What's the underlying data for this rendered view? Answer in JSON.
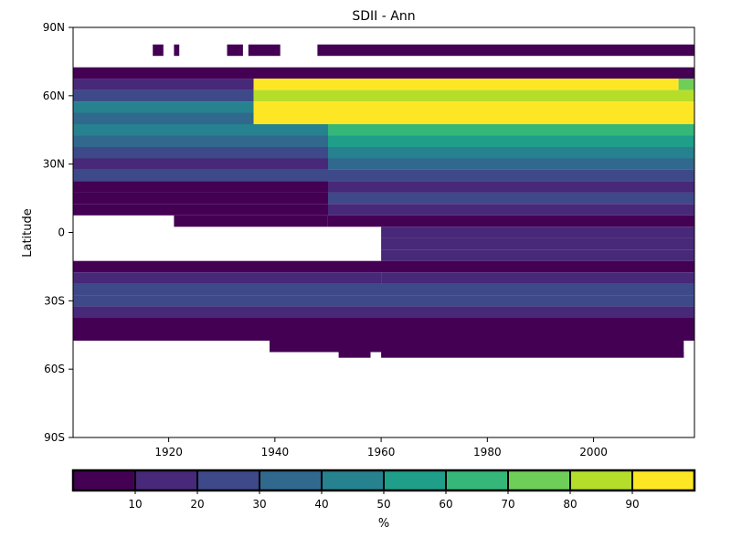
{
  "chart_data": {
    "type": "heatmap",
    "title": "SDII - Ann",
    "xlabel": "",
    "ylabel": "Latitude",
    "xlim": [
      1902,
      2019
    ],
    "ylim": [
      -90,
      90
    ],
    "x_ticks": [
      1920,
      1940,
      1960,
      1980,
      2000
    ],
    "x_tick_labels": [
      "1920",
      "1940",
      "1960",
      "1980",
      "2000"
    ],
    "y_ticks": [
      90,
      60,
      30,
      0,
      -30,
      -60,
      -90
    ],
    "y_tick_labels": [
      "90N",
      "60N",
      "30N",
      "0",
      "30S",
      "60S",
      "90S"
    ],
    "colorbar": {
      "label": "%",
      "boundaries": [
        0,
        10,
        20,
        30,
        40,
        50,
        60,
        70,
        80,
        90,
        100
      ],
      "tick_values": [
        10,
        20,
        30,
        40,
        50,
        60,
        70,
        80,
        90
      ],
      "tick_labels": [
        "10",
        "20",
        "30",
        "40",
        "50",
        "60",
        "70",
        "80",
        "90"
      ],
      "colors": [
        "#440154",
        "#482878",
        "#3e4989",
        "#31688e",
        "#26828e",
        "#1f9e89",
        "#35b779",
        "#6ece58",
        "#b5de2b",
        "#fde725"
      ]
    },
    "bands_note_values_are_percent_bins": true,
    "regions": [
      {
        "x": [
          1917,
          1919
        ],
        "lat": [
          77.5,
          82.5
        ],
        "bin": 0
      },
      {
        "x": [
          1921,
          1922
        ],
        "lat": [
          77.5,
          82.5
        ],
        "bin": 0
      },
      {
        "x": [
          1931,
          1934
        ],
        "lat": [
          77.5,
          82.5
        ],
        "bin": 0
      },
      {
        "x": [
          1935,
          1941
        ],
        "lat": [
          77.5,
          82.5
        ],
        "bin": 0
      },
      {
        "x": [
          1948,
          2019
        ],
        "lat": [
          77.5,
          82.5
        ],
        "bin": 0
      },
      {
        "x": [
          1902,
          2019
        ],
        "lat": [
          67.5,
          72.5
        ],
        "bin": 0
      },
      {
        "x": [
          1902,
          1936
        ],
        "lat": [
          62.5,
          67.5
        ],
        "bin": 1
      },
      {
        "x": [
          1936,
          2016
        ],
        "lat": [
          62.5,
          67.5
        ],
        "bin": 9
      },
      {
        "x": [
          2016,
          2019
        ],
        "lat": [
          62.5,
          67.5
        ],
        "bin": 7
      },
      {
        "x": [
          1902,
          1936
        ],
        "lat": [
          57.5,
          62.5
        ],
        "bin": 2
      },
      {
        "x": [
          1936,
          2019
        ],
        "lat": [
          57.5,
          62.5
        ],
        "bin": 8
      },
      {
        "x": [
          1902,
          1936
        ],
        "lat": [
          52.5,
          57.5
        ],
        "bin": 4
      },
      {
        "x": [
          1936,
          2019
        ],
        "lat": [
          52.5,
          57.5
        ],
        "bin": 9
      },
      {
        "x": [
          1902,
          1936
        ],
        "lat": [
          47.5,
          52.5
        ],
        "bin": 3
      },
      {
        "x": [
          1936,
          2019
        ],
        "lat": [
          47.5,
          52.5
        ],
        "bin": 9
      },
      {
        "x": [
          1902,
          1950
        ],
        "lat": [
          42.5,
          47.5
        ],
        "bin": 4
      },
      {
        "x": [
          1950,
          2019
        ],
        "lat": [
          42.5,
          47.5
        ],
        "bin": 6
      },
      {
        "x": [
          1902,
          1950
        ],
        "lat": [
          37.5,
          42.5
        ],
        "bin": 3
      },
      {
        "x": [
          1950,
          2019
        ],
        "lat": [
          37.5,
          42.5
        ],
        "bin": 5
      },
      {
        "x": [
          1902,
          1950
        ],
        "lat": [
          32.5,
          37.5
        ],
        "bin": 2
      },
      {
        "x": [
          1950,
          2019
        ],
        "lat": [
          32.5,
          37.5
        ],
        "bin": 4
      },
      {
        "x": [
          1902,
          1950
        ],
        "lat": [
          27.5,
          32.5
        ],
        "bin": 1
      },
      {
        "x": [
          1950,
          2019
        ],
        "lat": [
          27.5,
          32.5
        ],
        "bin": 3
      },
      {
        "x": [
          1902,
          1950
        ],
        "lat": [
          22.5,
          27.5
        ],
        "bin": 2
      },
      {
        "x": [
          1950,
          2019
        ],
        "lat": [
          22.5,
          27.5
        ],
        "bin": 2
      },
      {
        "x": [
          1902,
          1950
        ],
        "lat": [
          17.5,
          22.5
        ],
        "bin": 0
      },
      {
        "x": [
          1950,
          2019
        ],
        "lat": [
          17.5,
          22.5
        ],
        "bin": 1
      },
      {
        "x": [
          1902,
          1950
        ],
        "lat": [
          12.5,
          17.5
        ],
        "bin": 0
      },
      {
        "x": [
          1950,
          2019
        ],
        "lat": [
          12.5,
          17.5
        ],
        "bin": 2
      },
      {
        "x": [
          1902,
          1950
        ],
        "lat": [
          7.5,
          12.5
        ],
        "bin": 0
      },
      {
        "x": [
          1950,
          2019
        ],
        "lat": [
          7.5,
          12.5
        ],
        "bin": 1
      },
      {
        "x": [
          1921,
          1950
        ],
        "lat": [
          2.5,
          7.5
        ],
        "bin": 0
      },
      {
        "x": [
          1950,
          2019
        ],
        "lat": [
          2.5,
          7.5
        ],
        "bin": 0
      },
      {
        "x": [
          1960,
          2019
        ],
        "lat": [
          -2.5,
          2.5
        ],
        "bin": 1
      },
      {
        "x": [
          1960,
          2019
        ],
        "lat": [
          -7.5,
          -2.5
        ],
        "bin": 1
      },
      {
        "x": [
          1960,
          2019
        ],
        "lat": [
          -12.5,
          -7.5
        ],
        "bin": 1
      },
      {
        "x": [
          1902,
          2019
        ],
        "lat": [
          -17.5,
          -12.5
        ],
        "bin": 0
      },
      {
        "x": [
          1902,
          1960
        ],
        "lat": [
          -22.5,
          -17.5
        ],
        "bin": 1
      },
      {
        "x": [
          1960,
          2019
        ],
        "lat": [
          -22.5,
          -17.5
        ],
        "bin": 1
      },
      {
        "x": [
          1902,
          2019
        ],
        "lat": [
          -27.5,
          -22.5
        ],
        "bin": 2
      },
      {
        "x": [
          1902,
          2019
        ],
        "lat": [
          -32.5,
          -27.5
        ],
        "bin": 2
      },
      {
        "x": [
          1902,
          2019
        ],
        "lat": [
          -37.5,
          -32.5
        ],
        "bin": 1
      },
      {
        "x": [
          1902,
          2019
        ],
        "lat": [
          -42.5,
          -37.5
        ],
        "bin": 0
      },
      {
        "x": [
          1902,
          2019
        ],
        "lat": [
          -47.5,
          -42.5
        ],
        "bin": 0
      },
      {
        "x": [
          1939,
          2017
        ],
        "lat": [
          -52.5,
          -47.5
        ],
        "bin": 0
      },
      {
        "x": [
          1952,
          1958
        ],
        "lat": [
          -55,
          -52.5
        ],
        "bin": 0
      },
      {
        "x": [
          1960,
          2017
        ],
        "lat": [
          -55,
          -52.5
        ],
        "bin": 0
      }
    ]
  }
}
